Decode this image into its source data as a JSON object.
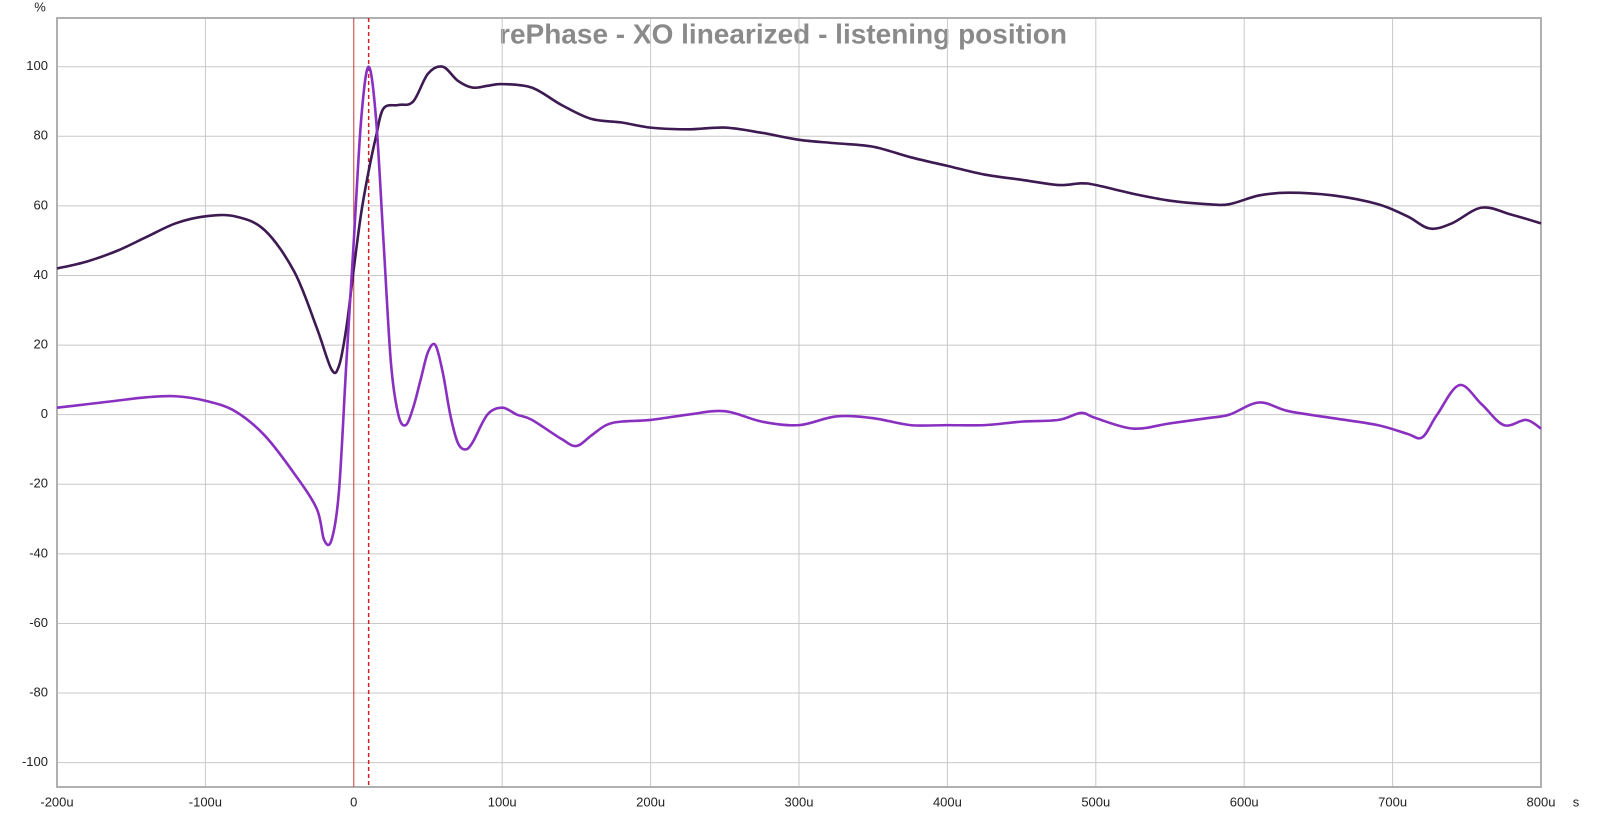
{
  "chart_data": {
    "type": "line",
    "title": "rePhase - XO linearized  - listening position",
    "x_label": "s",
    "y_label": "%",
    "xlim": [
      -200,
      800
    ],
    "ylim": [
      -107,
      114
    ],
    "xticks": [
      {
        "value": -200,
        "label": "-200u"
      },
      {
        "value": -100,
        "label": "-100u"
      },
      0,
      {
        "value": 100,
        "label": "100u"
      },
      {
        "value": 200,
        "label": "200u"
      },
      {
        "value": 300,
        "label": "300u"
      },
      {
        "value": 400,
        "label": "400u"
      },
      {
        "value": 500,
        "label": "500u"
      },
      {
        "value": 600,
        "label": "600u"
      },
      {
        "value": 700,
        "label": "700u"
      },
      {
        "value": 800,
        "label": "800u"
      }
    ],
    "yticks": [
      -100,
      -80,
      -60,
      -40,
      -20,
      0,
      20,
      40,
      60,
      80,
      100
    ],
    "grid": true,
    "reference_lines": [
      {
        "x": 0,
        "color": "#cc2222",
        "style": "solid"
      },
      {
        "x": 10,
        "color": "#cc2222",
        "style": "dashed"
      }
    ],
    "series": [
      {
        "color": "#3d1a52",
        "x": [
          -200,
          -180,
          -160,
          -140,
          -120,
          -100,
          -80,
          -60,
          -40,
          -25,
          -15,
          -10,
          -5,
          0,
          5,
          10,
          15,
          20,
          30,
          40,
          50,
          60,
          70,
          80,
          90,
          100,
          120,
          140,
          160,
          180,
          200,
          225,
          250,
          275,
          300,
          325,
          350,
          375,
          400,
          425,
          450,
          475,
          490,
          500,
          525,
          550,
          575,
          590,
          610,
          630,
          660,
          690,
          710,
          725,
          740,
          760,
          780,
          800
        ],
        "values": [
          42,
          44,
          47,
          51,
          55,
          57,
          57,
          53,
          41,
          25,
          13,
          14,
          25,
          42,
          58,
          70,
          80,
          88,
          89,
          90,
          98,
          100,
          96,
          94,
          94.5,
          95,
          94,
          89,
          85,
          84,
          82.5,
          82,
          82.5,
          81,
          79,
          78,
          77,
          74,
          71.5,
          69,
          67.5,
          66,
          66.5,
          66,
          63.5,
          61.5,
          60.5,
          60.5,
          63,
          63.8,
          63,
          60.5,
          57,
          53.5,
          55,
          59.5,
          57.5,
          55
        ]
      },
      {
        "color": "#8a30c0",
        "x": [
          -200,
          -180,
          -160,
          -140,
          -120,
          -100,
          -80,
          -60,
          -40,
          -25,
          -20,
          -15,
          -10,
          -5,
          0,
          5,
          10,
          15,
          20,
          25,
          30,
          35,
          40,
          45,
          50,
          55,
          60,
          65,
          70,
          75,
          80,
          90,
          100,
          110,
          120,
          140,
          150,
          160,
          170,
          180,
          200,
          225,
          250,
          275,
          300,
          325,
          350,
          375,
          400,
          425,
          450,
          475,
          490,
          500,
          525,
          550,
          575,
          590,
          610,
          630,
          660,
          690,
          710,
          720,
          730,
          745,
          760,
          775,
          790,
          800
        ],
        "values": [
          2,
          3,
          4,
          5,
          5.3,
          4,
          1,
          -6,
          -17,
          -27,
          -36,
          -36,
          -22,
          15,
          50,
          85,
          100,
          85,
          50,
          15,
          0,
          -3,
          2,
          10,
          18,
          20,
          12,
          0,
          -8,
          -10,
          -8,
          0,
          2,
          0,
          -1.5,
          -7,
          -9,
          -6,
          -3,
          -2,
          -1.5,
          0,
          1,
          -2,
          -3,
          -0.5,
          -1,
          -3,
          -3,
          -3,
          -2,
          -1.5,
          0.5,
          -1,
          -4,
          -2.5,
          -1,
          0,
          3.5,
          1,
          -1,
          -3,
          -5.5,
          -6.5,
          0,
          8.5,
          3,
          -3,
          -1.5,
          -4
        ]
      }
    ]
  }
}
